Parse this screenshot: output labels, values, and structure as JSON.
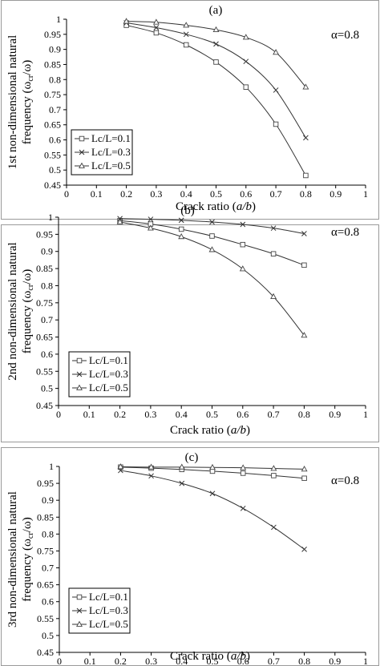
{
  "chart_data": [
    {
      "type": "line",
      "panel_label": "(a)",
      "annotation": "α=0.8",
      "xlabel_main": "Crack ratio (",
      "xlabel_var": "a/b",
      "xlabel_end": ")",
      "ylabel_line1": "1st non-dimensional natural",
      "ylabel_line2": "frequency (ω",
      "ylabel_sub": "cr",
      "ylabel_end": "/ω)",
      "xlim": [
        0,
        1
      ],
      "ylim": [
        0.45,
        1
      ],
      "x_ticks": [
        "0",
        "0.1",
        "0.2",
        "0.3",
        "0.4",
        "0.5",
        "0.6",
        "0.7",
        "0.8",
        "0.9",
        "1"
      ],
      "y_ticks": [
        "0.45",
        "0.5",
        "0.55",
        "0.6",
        "0.65",
        "0.7",
        "0.75",
        "0.8",
        "0.85",
        "0.9",
        "0.95",
        "1"
      ],
      "legend_position": "bottom-left",
      "x": [
        0.2,
        0.3,
        0.4,
        0.5,
        0.6,
        0.7,
        0.8
      ],
      "series": [
        {
          "name": "Lc/L=0.1",
          "marker": "square",
          "values": [
            0.98,
            0.955,
            0.915,
            0.858,
            0.775,
            0.652,
            0.482
          ]
        },
        {
          "name": "Lc/L=0.3",
          "marker": "cross",
          "values": [
            0.988,
            0.972,
            0.95,
            0.918,
            0.86,
            0.765,
            0.607
          ]
        },
        {
          "name": "Lc/L=0.5",
          "marker": "triangle",
          "values": [
            0.993,
            0.99,
            0.98,
            0.965,
            0.94,
            0.89,
            0.775
          ]
        }
      ]
    },
    {
      "type": "line",
      "panel_label": "(b)",
      "annotation": "α=0.8",
      "xlabel_main": "Crack ratio (",
      "xlabel_var": "a/b",
      "xlabel_end": ")",
      "ylabel_line1": "2nd non-dimensional natural",
      "ylabel_line2": "frequency (ω",
      "ylabel_sub": "cr",
      "ylabel_end": "/ω)",
      "xlim": [
        0,
        1
      ],
      "ylim": [
        0.45,
        1
      ],
      "x_ticks": [
        "0",
        "0.1",
        "0.2",
        "0.3",
        "0.4",
        "0.5",
        "0.6",
        "0.7",
        "0.8",
        "0.9",
        "1"
      ],
      "y_ticks": [
        "0.45",
        "0.5",
        "0.55",
        "0.6",
        "0.65",
        "0.7",
        "0.75",
        "0.8",
        "0.85",
        "0.9",
        "0.95",
        "1"
      ],
      "legend_position": "bottom-left",
      "x": [
        0.2,
        0.3,
        0.4,
        0.5,
        0.6,
        0.7,
        0.8
      ],
      "series": [
        {
          "name": "Lc/L=0.1",
          "marker": "square",
          "values": [
            0.99,
            0.98,
            0.965,
            0.945,
            0.92,
            0.893,
            0.86
          ]
        },
        {
          "name": "Lc/L=0.3",
          "marker": "cross",
          "values": [
            0.996,
            0.994,
            0.991,
            0.986,
            0.979,
            0.968,
            0.952
          ]
        },
        {
          "name": "Lc/L=0.5",
          "marker": "triangle",
          "values": [
            0.986,
            0.968,
            0.943,
            0.905,
            0.849,
            0.768,
            0.655
          ]
        }
      ]
    },
    {
      "type": "line",
      "panel_label": "(c)",
      "annotation": "α=0.8",
      "xlabel_main": "Crack ratio (",
      "xlabel_var": "a/b",
      "xlabel_end": ")",
      "ylabel_line1": "3rd non-dimensional natural",
      "ylabel_line2": "frequency (ω",
      "ylabel_sub": "cr",
      "ylabel_end": "/ω)",
      "xlim": [
        0,
        1
      ],
      "ylim": [
        0.45,
        1
      ],
      "x_ticks": [
        "0",
        "0.1",
        "0.2",
        "0.3",
        "0.4",
        "0.5",
        "0.6",
        "0.7",
        "0.8",
        "0.9",
        "1"
      ],
      "y_ticks": [
        "0.45",
        "0.5",
        "0.55",
        "0.6",
        "0.65",
        "0.7",
        "0.75",
        "0.8",
        "0.85",
        "0.9",
        "0.95",
        "1"
      ],
      "legend_position": "bottom-left",
      "x": [
        0.2,
        0.3,
        0.4,
        0.5,
        0.6,
        0.7,
        0.8
      ],
      "series": [
        {
          "name": "Lc/L=0.1",
          "marker": "square",
          "values": [
            0.998,
            0.995,
            0.991,
            0.986,
            0.98,
            0.973,
            0.965
          ]
        },
        {
          "name": "Lc/L=0.3",
          "marker": "cross",
          "values": [
            0.988,
            0.972,
            0.95,
            0.92,
            0.876,
            0.82,
            0.755
          ]
        },
        {
          "name": "Lc/L=0.5",
          "marker": "triangle",
          "values": [
            0.999,
            0.998,
            0.998,
            0.997,
            0.996,
            0.994,
            0.992
          ]
        }
      ]
    }
  ]
}
